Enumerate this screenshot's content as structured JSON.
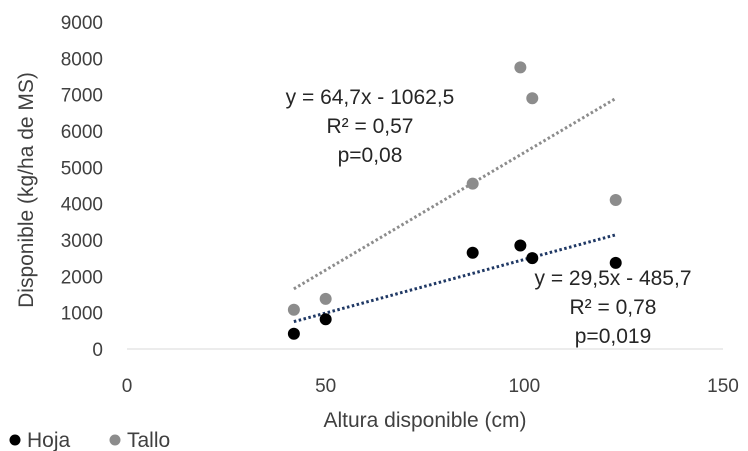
{
  "chart_data": {
    "type": "scatter",
    "xlabel": "Altura disponible (cm)",
    "ylabel": "Disponible (kg/ha de MS)",
    "xlim": [
      0,
      150
    ],
    "ylim": [
      0,
      9000
    ],
    "x_ticks": [
      "0",
      "50",
      "100",
      "150"
    ],
    "y_ticks": [
      "0",
      "1000",
      "2000",
      "3000",
      "4000",
      "5000",
      "6000",
      "7000",
      "8000",
      "9000"
    ],
    "grid": false,
    "legend_position": "bottom-left",
    "series": [
      {
        "name": "Hoja",
        "color": "#000000",
        "points": [
          {
            "x": 42,
            "y": 420
          },
          {
            "x": 50,
            "y": 820
          },
          {
            "x": 87,
            "y": 2650
          },
          {
            "x": 99,
            "y": 2850
          },
          {
            "x": 102,
            "y": 2500
          },
          {
            "x": 123,
            "y": 2370
          }
        ],
        "trendline": {
          "slope": 29.5,
          "intercept": -485.7,
          "x_range": [
            42,
            123
          ],
          "color": "#1f3864",
          "style": "dotted"
        },
        "annotation": [
          "y = 29,5x - 485,7",
          "R² = 0,78",
          "p=0,019"
        ]
      },
      {
        "name": "Tallo",
        "color": "#8c8c8c",
        "points": [
          {
            "x": 42,
            "y": 1080
          },
          {
            "x": 50,
            "y": 1380
          },
          {
            "x": 87,
            "y": 4550
          },
          {
            "x": 99,
            "y": 7750
          },
          {
            "x": 102,
            "y": 6900
          },
          {
            "x": 123,
            "y": 4100
          }
        ],
        "trendline": {
          "slope": 64.7,
          "intercept": -1062.5,
          "x_range": [
            42,
            123
          ],
          "color": "#8c8c8c",
          "style": "dotted"
        },
        "annotation": [
          "y = 64,7x - 1062,5",
          "R² = 0,57",
          "p=0,08"
        ]
      }
    ]
  }
}
